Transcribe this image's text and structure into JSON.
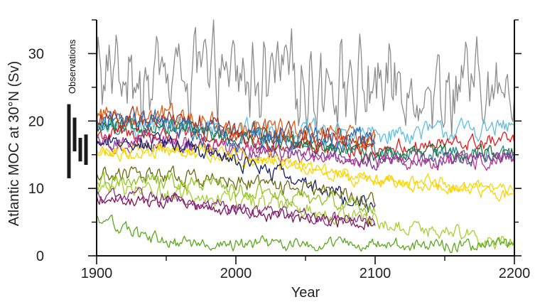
{
  "chart_data": {
    "type": "line",
    "title": "",
    "xlabel": "Year",
    "ylabel": "Atlantic MOC at  30°N (Sv)",
    "xlim": [
      1900,
      2200
    ],
    "ylim": [
      0,
      35
    ],
    "xticks": [
      1900,
      2000,
      2100,
      2200
    ],
    "yticks": [
      0,
      10,
      20,
      30
    ],
    "grid": false,
    "observations": {
      "label": "Observations",
      "bars": [
        {
          "low": 11.5,
          "high": 22.5
        },
        {
          "low": 15.5,
          "high": 20.5
        },
        {
          "low": 14.0,
          "high": 17.5
        },
        {
          "low": 13.5,
          "high": 18.0
        }
      ],
      "color": "#1a1a1a"
    },
    "series": [
      {
        "name": "gray",
        "color": "#8c8c8c",
        "start": 1900,
        "end": 2200,
        "points": [
          [
            1900,
            27
          ],
          [
            1950,
            27
          ],
          [
            2000,
            26
          ],
          [
            2100,
            25.5
          ],
          [
            2200,
            24
          ]
        ],
        "noise": 3.5,
        "osc": 1.0
      },
      {
        "name": "light-blue",
        "color": "#5fbfdf",
        "start": 1900,
        "end": 2200,
        "points": [
          [
            1900,
            19
          ],
          [
            1950,
            19.5
          ],
          [
            2000,
            19
          ],
          [
            2100,
            18
          ],
          [
            2200,
            19
          ]
        ],
        "noise": 1.2,
        "osc": 0
      },
      {
        "name": "red",
        "color": "#e41a1c",
        "start": 1900,
        "end": 2200,
        "points": [
          [
            1900,
            18
          ],
          [
            1950,
            18
          ],
          [
            2000,
            17
          ],
          [
            2100,
            16
          ],
          [
            2200,
            17
          ]
        ],
        "noise": 1.0,
        "osc": 0
      },
      {
        "name": "dark-green",
        "color": "#1b6b2b",
        "start": 1900,
        "end": 2200,
        "points": [
          [
            1900,
            19
          ],
          [
            1950,
            19
          ],
          [
            2000,
            17.5
          ],
          [
            2100,
            15
          ],
          [
            2200,
            15.5
          ]
        ],
        "noise": 1.0,
        "osc": 0
      },
      {
        "name": "teal",
        "color": "#2a8a84",
        "start": 1900,
        "end": 2200,
        "points": [
          [
            1900,
            19.5
          ],
          [
            1950,
            19
          ],
          [
            2000,
            18
          ],
          [
            2100,
            15.5
          ],
          [
            2200,
            15
          ]
        ],
        "noise": 1.0,
        "osc": 0
      },
      {
        "name": "magenta",
        "color": "#c0308f",
        "start": 1900,
        "end": 2200,
        "points": [
          [
            1900,
            17
          ],
          [
            1950,
            17
          ],
          [
            2000,
            16
          ],
          [
            2100,
            14
          ],
          [
            2200,
            14
          ]
        ],
        "noise": 1.0,
        "osc": 0
      },
      {
        "name": "purple",
        "color": "#7b3fa0",
        "start": 1900,
        "end": 2200,
        "points": [
          [
            1900,
            16.5
          ],
          [
            1950,
            16.5
          ],
          [
            2000,
            15.5
          ],
          [
            2100,
            14
          ],
          [
            2200,
            14.5
          ]
        ],
        "noise": 0.9,
        "osc": 0
      },
      {
        "name": "yellow-1",
        "color": "#f2dc00",
        "start": 1900,
        "end": 2200,
        "points": [
          [
            1900,
            15
          ],
          [
            1950,
            15.5
          ],
          [
            2000,
            14.5
          ],
          [
            2100,
            11.5
          ],
          [
            2200,
            10
          ]
        ],
        "noise": 0.8,
        "osc": 0
      },
      {
        "name": "yellow-2",
        "color": "#ffd000",
        "start": 1900,
        "end": 2200,
        "points": [
          [
            1900,
            15.5
          ],
          [
            1950,
            16
          ],
          [
            2000,
            15
          ],
          [
            2100,
            11
          ],
          [
            2200,
            9
          ]
        ],
        "noise": 0.8,
        "osc": 0
      },
      {
        "name": "orange",
        "color": "#e55b12",
        "start": 1900,
        "end": 2100,
        "points": [
          [
            1900,
            21
          ],
          [
            1950,
            21
          ],
          [
            2000,
            19
          ],
          [
            2100,
            17
          ]
        ],
        "noise": 1.3,
        "osc": 0
      },
      {
        "name": "brown-red",
        "color": "#a8321e",
        "start": 1900,
        "end": 2100,
        "points": [
          [
            1900,
            20
          ],
          [
            1950,
            20
          ],
          [
            2000,
            18.5
          ],
          [
            2100,
            17
          ]
        ],
        "noise": 1.3,
        "osc": 0
      },
      {
        "name": "blue",
        "color": "#2c6fbb",
        "start": 1900,
        "end": 2100,
        "points": [
          [
            1900,
            20
          ],
          [
            1950,
            20
          ],
          [
            1980,
            18
          ],
          [
            2100,
            17
          ]
        ],
        "noise": 1.4,
        "osc": 0
      },
      {
        "name": "navy",
        "color": "#13206e",
        "start": 1900,
        "end": 2100,
        "points": [
          [
            1900,
            17
          ],
          [
            1950,
            17
          ],
          [
            2000,
            14
          ],
          [
            2050,
            11
          ],
          [
            2100,
            7
          ]
        ],
        "noise": 1.0,
        "osc": 0
      },
      {
        "name": "olive",
        "color": "#6b6b12",
        "start": 1900,
        "end": 2100,
        "points": [
          [
            1900,
            12
          ],
          [
            1950,
            12
          ],
          [
            2000,
            11
          ],
          [
            2050,
            10
          ],
          [
            2100,
            8
          ]
        ],
        "noise": 1.0,
        "osc": 0
      },
      {
        "name": "yellow-green",
        "color": "#a6cf32",
        "start": 1900,
        "end": 2200,
        "points": [
          [
            1900,
            10
          ],
          [
            1950,
            9.5
          ],
          [
            2000,
            8.5
          ],
          [
            2100,
            5
          ],
          [
            2200,
            2
          ]
        ],
        "noise": 1.0,
        "osc": 0
      },
      {
        "name": "lime",
        "color": "#8fc31f",
        "start": 1900,
        "end": 2100,
        "points": [
          [
            1900,
            11
          ],
          [
            1950,
            11
          ],
          [
            2000,
            10
          ],
          [
            2100,
            7
          ]
        ],
        "noise": 1.0,
        "osc": 0
      },
      {
        "name": "dark-magenta",
        "color": "#7b1450",
        "start": 1900,
        "end": 2100,
        "points": [
          [
            1900,
            8.5
          ],
          [
            1950,
            8
          ],
          [
            2000,
            6.5
          ],
          [
            2100,
            4.5
          ]
        ],
        "noise": 0.8,
        "osc": 0
      },
      {
        "name": "violet",
        "color": "#8a2f86",
        "start": 1900,
        "end": 2100,
        "points": [
          [
            1900,
            9.5
          ],
          [
            1950,
            8.5
          ],
          [
            2000,
            7
          ],
          [
            2100,
            5
          ]
        ],
        "noise": 0.8,
        "osc": 0
      },
      {
        "name": "grass-green",
        "color": "#5aa81e",
        "start": 1900,
        "end": 2200,
        "points": [
          [
            1900,
            6
          ],
          [
            1930,
            3
          ],
          [
            1960,
            1.8
          ],
          [
            2200,
            1.5
          ]
        ],
        "noise": 0.8,
        "osc": 0
      }
    ]
  }
}
